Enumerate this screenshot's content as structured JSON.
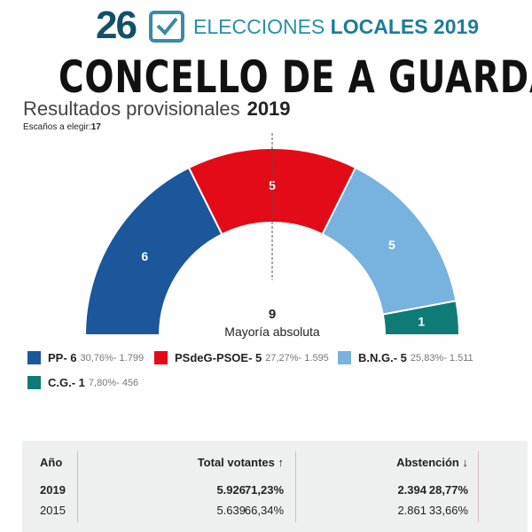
{
  "header": {
    "logo_number": "26",
    "logo_text_light": "ELECCIONES",
    "logo_text_bold": "LOCALES 2019",
    "title": "CONCELLO DE A GUARDA",
    "subtitle": "Resultados provisionales",
    "subtitle_year": "2019",
    "seats_label": "Escaños a elegir:",
    "seats_value": "17"
  },
  "chart_data": {
    "type": "hemicycle",
    "total_seats": 17,
    "majority_value": "9",
    "majority_label": "Mayoría absoluta",
    "series": [
      {
        "name": "PP",
        "legend": "PP- 6",
        "seats": 6,
        "seats_label": "6",
        "percent": "30,76%",
        "votes": "1.799",
        "detail": "30,76%- 1.799",
        "color": "#1c569b"
      },
      {
        "name": "PSdeG-PSOE",
        "legend": "PSdeG-PSOE- 5",
        "seats": 5,
        "seats_label": "5",
        "percent": "27,27%",
        "votes": "1.595",
        "detail": "27,27%- 1.595",
        "color": "#e30b17"
      },
      {
        "name": "B.N.G.",
        "legend": "B.N.G.- 5",
        "seats": 5,
        "seats_label": "5",
        "percent": "25,83%",
        "votes": "1.511",
        "detail": "25,83%- 1.511",
        "color": "#78b2de"
      },
      {
        "name": "C.G.",
        "legend": "C.G.- 1",
        "seats": 1,
        "seats_label": "1",
        "percent": "7,80%",
        "votes": "456",
        "detail": "7,80%- 456",
        "color": "#0e7b76"
      }
    ]
  },
  "table": {
    "headers": {
      "year": "Año",
      "voters": "Total votantes",
      "voters_arrow": "↑",
      "abstention": "Abstención",
      "abstention_arrow": "↓"
    },
    "rows": [
      {
        "year": "2019",
        "voters": "5.926",
        "voters_pct": "71,23%",
        "abst": "2.394",
        "abst_pct": "28,77%"
      },
      {
        "year": "2015",
        "voters": "5.639",
        "voters_pct": "66,34%",
        "abst": "2.861",
        "abst_pct": "33,66%"
      }
    ]
  }
}
